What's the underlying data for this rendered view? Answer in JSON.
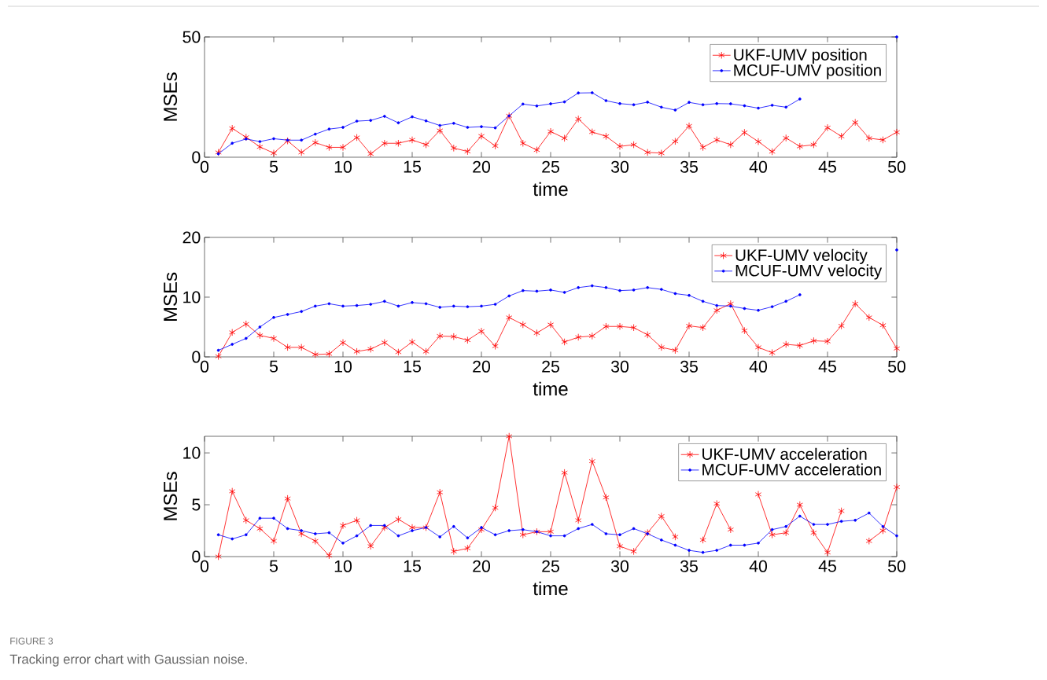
{
  "chart_data": [
    {
      "type": "line",
      "xlabel": "time",
      "ylabel": "MSEs",
      "x": [
        1,
        2,
        3,
        4,
        5,
        6,
        7,
        8,
        9,
        10,
        11,
        12,
        13,
        14,
        15,
        16,
        17,
        18,
        19,
        20,
        21,
        22,
        23,
        24,
        25,
        26,
        27,
        28,
        29,
        30,
        31,
        32,
        33,
        34,
        35,
        36,
        37,
        38,
        39,
        40,
        41,
        42,
        43,
        44,
        45,
        46,
        47,
        48,
        49,
        50
      ],
      "series": [
        {
          "name": "UKF-UMV position",
          "color": "#ff0000",
          "marker": "cross",
          "values": [
            2.0,
            12.0,
            8.3,
            4.3,
            1.7,
            6.8,
            2.0,
            6.1,
            4.1,
            4.1,
            8.2,
            1.4,
            5.8,
            5.8,
            7.2,
            5.2,
            11.1,
            3.8,
            2.4,
            8.8,
            4.7,
            17.2,
            5.8,
            3.0,
            10.7,
            7.9,
            15.9,
            10.5,
            8.7,
            4.5,
            5.2,
            2.0,
            1.7,
            6.6,
            13.0,
            4.1,
            7.2,
            5.2,
            10.3,
            6.5,
            2.3,
            8.0,
            4.5,
            5.2,
            12.3,
            8.7,
            14.5,
            7.9,
            7.2,
            10.4
          ]
        },
        {
          "name": "MCUF-UMV position",
          "color": "#0000ff",
          "marker": "circle",
          "values": [
            1.4,
            5.8,
            7.6,
            6.5,
            7.7,
            7.1,
            7.1,
            9.6,
            11.7,
            12.4,
            15.0,
            15.3,
            17.0,
            14.3,
            16.8,
            15.1,
            13.2,
            14.1,
            12.4,
            12.7,
            12.2,
            17.2,
            22.1,
            21.3,
            22.2,
            23.0,
            26.7,
            26.8,
            23.5,
            22.3,
            21.8,
            22.9,
            20.8,
            19.6,
            22.8,
            21.8,
            22.3,
            22.2,
            21.4,
            20.4,
            21.6,
            20.8,
            24.2,
            null,
            null,
            null,
            null,
            null,
            null,
            50.0
          ]
        }
      ],
      "xlim": [
        0,
        50
      ],
      "xticks": [
        0,
        5,
        10,
        15,
        20,
        25,
        30,
        35,
        40,
        45,
        50
      ],
      "ylim": [
        0,
        50
      ],
      "yticks": [
        0,
        50
      ],
      "legend": "top right",
      "line_style": "solid"
    },
    {
      "type": "line",
      "xlabel": "time",
      "ylabel": "MSEs",
      "x": [
        1,
        2,
        3,
        4,
        5,
        6,
        7,
        8,
        9,
        10,
        11,
        12,
        13,
        14,
        15,
        16,
        17,
        18,
        19,
        20,
        21,
        22,
        23,
        24,
        25,
        26,
        27,
        28,
        29,
        30,
        31,
        32,
        33,
        34,
        35,
        36,
        37,
        38,
        39,
        40,
        41,
        42,
        43,
        44,
        45,
        46,
        47,
        48,
        49,
        50
      ],
      "series": [
        {
          "name": "UKF-UMV velocity",
          "color": "#ff0000",
          "marker": "cross",
          "values": [
            0.1,
            4.1,
            5.5,
            3.6,
            3.1,
            1.6,
            1.6,
            0.4,
            0.5,
            2.4,
            0.9,
            1.3,
            2.4,
            0.8,
            2.5,
            0.9,
            3.5,
            3.4,
            2.8,
            4.3,
            1.8,
            6.6,
            5.4,
            4.0,
            5.4,
            2.5,
            3.3,
            3.5,
            5.1,
            5.1,
            4.9,
            3.7,
            1.6,
            1.1,
            5.2,
            4.9,
            7.8,
            8.9,
            4.4,
            1.6,
            0.7,
            2.1,
            1.9,
            2.7,
            2.6,
            5.2,
            8.9,
            6.6,
            5.3,
            1.4
          ]
        },
        {
          "name": "MCUF-UMV velocity",
          "color": "#0000ff",
          "marker": "circle",
          "values": [
            1.1,
            2.1,
            3.1,
            5.0,
            6.6,
            7.1,
            7.6,
            8.5,
            8.9,
            8.5,
            8.6,
            8.8,
            9.3,
            8.5,
            9.1,
            8.9,
            8.3,
            8.5,
            8.4,
            8.5,
            8.8,
            10.2,
            11.1,
            11.0,
            11.2,
            10.8,
            11.6,
            11.9,
            11.6,
            11.1,
            11.2,
            11.6,
            11.3,
            10.6,
            10.3,
            9.3,
            8.6,
            8.5,
            8.1,
            7.8,
            8.4,
            9.3,
            10.4,
            null,
            null,
            null,
            null,
            null,
            null,
            17.9
          ]
        }
      ],
      "xlim": [
        0,
        50
      ],
      "xticks": [
        0,
        5,
        10,
        15,
        20,
        25,
        30,
        35,
        40,
        45,
        50
      ],
      "ylim": [
        0,
        20
      ],
      "yticks": [
        0,
        10,
        20
      ],
      "legend": "top right",
      "line_style": "solid"
    },
    {
      "type": "line",
      "xlabel": "time",
      "ylabel": "MSEs",
      "x": [
        1,
        2,
        3,
        4,
        5,
        6,
        7,
        8,
        9,
        10,
        11,
        12,
        13,
        14,
        15,
        16,
        17,
        18,
        19,
        20,
        21,
        22,
        23,
        24,
        25,
        26,
        27,
        28,
        29,
        30,
        31,
        32,
        33,
        34,
        35,
        36,
        37,
        38,
        39,
        40,
        41,
        42,
        43,
        44,
        45,
        46,
        47,
        48,
        49,
        50
      ],
      "series": [
        {
          "name": "UKF-UMV acceleration",
          "color": "#ff0000",
          "marker": "cross",
          "values": [
            0.0,
            6.3,
            3.5,
            2.7,
            1.5,
            5.6,
            2.2,
            1.5,
            0.1,
            3.0,
            3.5,
            1.0,
            2.8,
            3.6,
            2.8,
            2.8,
            6.2,
            0.5,
            0.8,
            2.6,
            4.7,
            11.6,
            2.1,
            2.4,
            2.4,
            8.1,
            3.5,
            9.2,
            5.7,
            1.0,
            0.5,
            2.3,
            3.9,
            1.9,
            null,
            1.6,
            5.1,
            2.6,
            null,
            6.0,
            2.1,
            2.3,
            5.0,
            2.3,
            0.4,
            4.4,
            null,
            1.5,
            2.5,
            6.7
          ]
        },
        {
          "name": "MCUF-UMV acceleration",
          "color": "#0000ff",
          "marker": "circle",
          "values": [
            2.1,
            1.7,
            2.1,
            3.7,
            3.7,
            2.7,
            2.5,
            2.2,
            2.3,
            1.3,
            2.0,
            3.0,
            3.0,
            2.0,
            2.5,
            2.8,
            1.9,
            2.9,
            1.8,
            2.8,
            2.1,
            2.5,
            2.6,
            2.4,
            2.0,
            2.0,
            2.7,
            3.1,
            2.2,
            2.1,
            2.7,
            2.2,
            1.6,
            1.1,
            0.6,
            0.4,
            0.6,
            1.1,
            1.1,
            1.3,
            2.6,
            2.9,
            3.9,
            3.1,
            3.1,
            3.4,
            3.5,
            4.2,
            2.9,
            2.0
          ]
        }
      ],
      "xlim": [
        0,
        50
      ],
      "xticks": [
        0,
        5,
        10,
        15,
        20,
        25,
        30,
        35,
        40,
        45,
        50
      ],
      "ylim": [
        0,
        11.6
      ],
      "yticks": [
        0,
        5,
        10
      ],
      "legend": "top right",
      "line_style": "solid",
      "annotations": [
        "FIGURE 3",
        "Tracking error chart with Gaussian noise."
      ]
    }
  ]
}
